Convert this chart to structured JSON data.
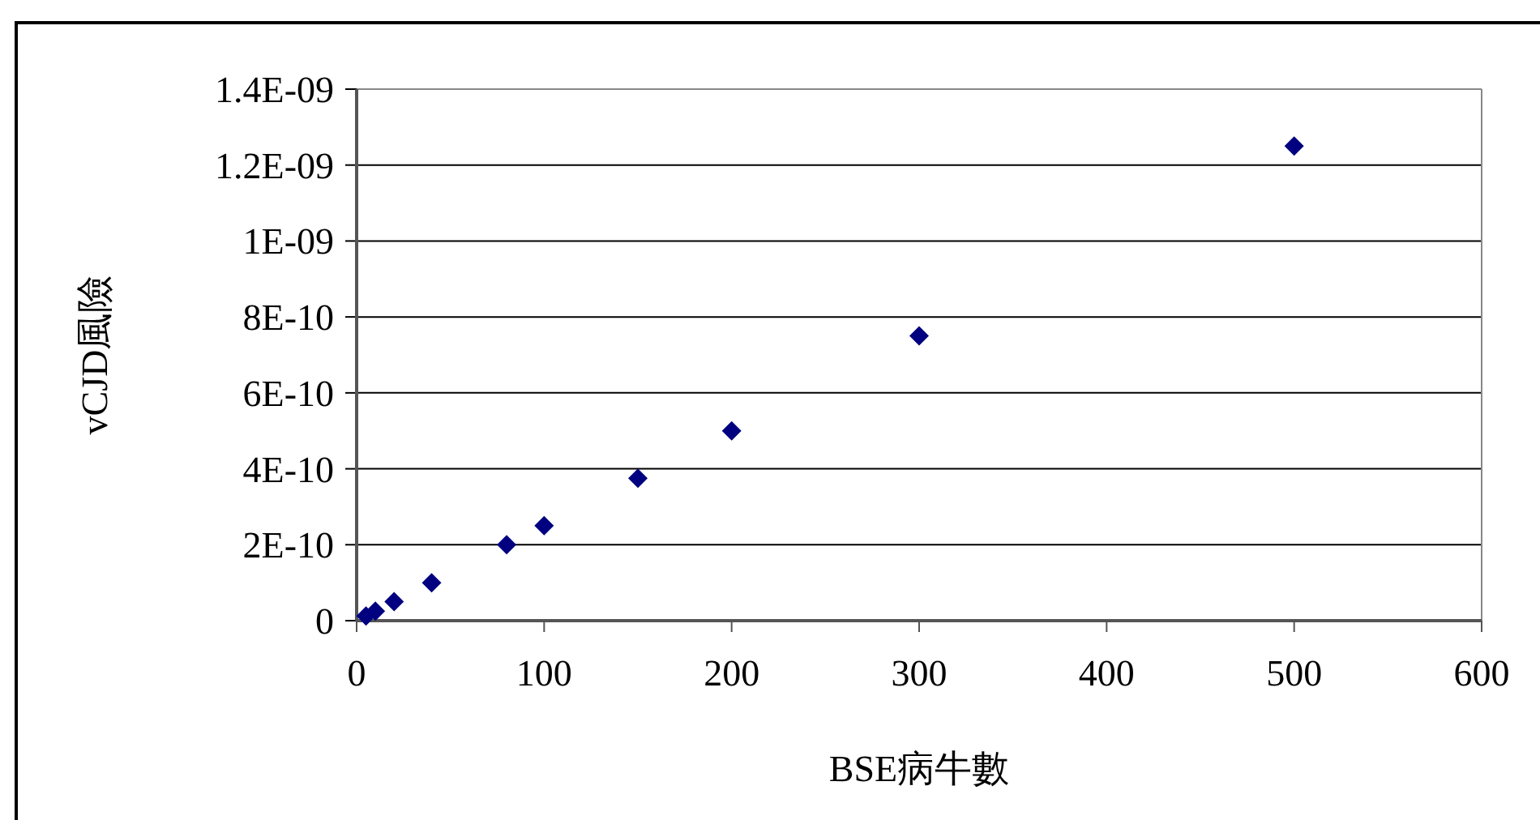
{
  "chart_data": {
    "type": "scatter",
    "xlabel": "BSE病牛數",
    "ylabel": "vCJD風險",
    "x": [
      5,
      10,
      20,
      40,
      80,
      100,
      150,
      200,
      300,
      500
    ],
    "series": [
      {
        "color": "#000080",
        "values": [
          1.25e-11,
          2.5e-11,
          5e-11,
          1e-10,
          2e-10,
          2.5e-10,
          3.75e-10,
          5e-10,
          7.5e-10,
          1.25e-09
        ]
      }
    ],
    "xlim": [
      0,
      600
    ],
    "xticks": [
      0,
      100,
      200,
      300,
      400,
      500,
      600
    ],
    "ylim": [
      0,
      1.4e-09
    ],
    "yticks": [
      0,
      {
        "value": 2e-10,
        "label": "2E-10"
      },
      {
        "value": 4e-10,
        "label": "4E-10"
      },
      {
        "value": 6e-10,
        "label": "6E-10"
      },
      {
        "value": 8e-10,
        "label": "8E-10"
      },
      {
        "value": 1e-09,
        "label": "1E-09"
      },
      {
        "value": 1.2e-09,
        "label": "1.2E-09"
      },
      {
        "value": 1.4e-09,
        "label": "1.4E-09"
      }
    ],
    "grid": "y",
    "marker": "diamond"
  }
}
